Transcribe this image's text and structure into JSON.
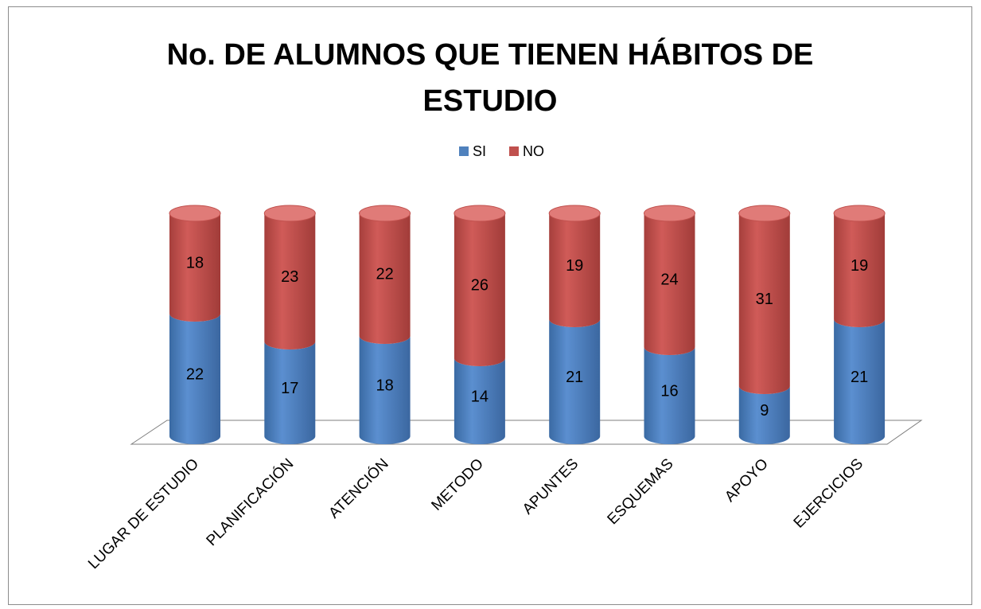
{
  "chart_data": {
    "type": "bar",
    "stacked": true,
    "shape": "cylinder",
    "title": "No. DE ALUMNOS QUE TIENEN HÁBITOS DE ESTUDIO",
    "categories": [
      "LUGAR DE ESTUDIO",
      "PLANIFICACIÓN",
      "ATENCIÓN",
      "METODO",
      "APUNTES",
      "ESQUEMAS",
      "APOYO",
      "EJERCICIOS"
    ],
    "series": [
      {
        "name": "SI",
        "color": "#4f81bd",
        "values": [
          22,
          17,
          18,
          14,
          21,
          16,
          9,
          21
        ]
      },
      {
        "name": "NO",
        "color": "#c0504d",
        "values": [
          18,
          23,
          22,
          26,
          19,
          24,
          31,
          19
        ]
      }
    ],
    "legend": "top",
    "grid": false
  }
}
